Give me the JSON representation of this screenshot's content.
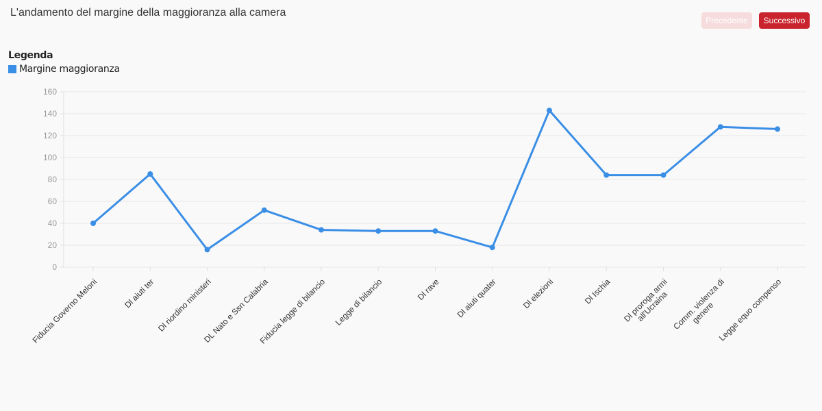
{
  "header": {
    "title": "L'andamento del margine della maggioranza alla camera",
    "prev_label": "Precedente",
    "next_label": "Successivo"
  },
  "legend": {
    "title": "Legenda",
    "items": [
      {
        "label": "Margine maggioranza",
        "color": "#3a8ee6"
      }
    ]
  },
  "chart_data": {
    "type": "line",
    "title": "L'andamento del margine della maggioranza alla camera",
    "xlabel": "",
    "ylabel": "",
    "ylim": [
      0,
      160
    ],
    "yticks": [
      0,
      20,
      40,
      60,
      80,
      100,
      120,
      140,
      160
    ],
    "grid": true,
    "legend_position": "top-left",
    "categories": [
      [
        "Fiducia Governo Meloni"
      ],
      [
        "Dl aiuti ter"
      ],
      [
        "Dl riordino ministeri"
      ],
      [
        "DL Nato e Ssn Calabria"
      ],
      [
        "Fiducia legge di bilancio"
      ],
      [
        "Legge di bilancio"
      ],
      [
        "Dl rave"
      ],
      [
        "Dl aiuti quater"
      ],
      [
        "Dl elezioni"
      ],
      [
        "Dl Ischia"
      ],
      [
        "Dl proroga armi",
        "all'Ucraina"
      ],
      [
        "Comm. violenza di",
        "genere"
      ],
      [
        "Legge equo compenso"
      ]
    ],
    "series": [
      {
        "name": "Margine maggioranza",
        "color": "#3a8ee6",
        "values": [
          40,
          85,
          16,
          52,
          34,
          33,
          33,
          18,
          143,
          84,
          84,
          128,
          126
        ]
      }
    ]
  }
}
